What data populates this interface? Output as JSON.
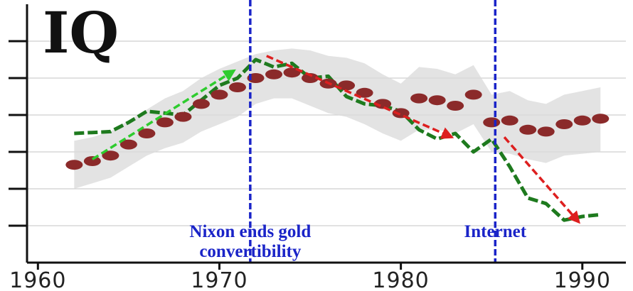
{
  "chart_data": {
    "type": "line",
    "title": "IQ",
    "xlabel": "",
    "ylabel": "",
    "xlim": [
      1959.4,
      1992.4
    ],
    "ylim": [
      0,
      7
    ],
    "x_ticks": [
      "1960",
      "1970",
      "1980",
      "1990"
    ],
    "y_gridlines": [
      1,
      2,
      3,
      4,
      5,
      6
    ],
    "grid": true,
    "legend": "none",
    "series": [
      {
        "style": "dashed",
        "color": "#1e7a1e",
        "x": [
          1962,
          1964,
          1965,
          1966,
          1968,
          1969,
          1970,
          1971,
          1972,
          1973,
          1974,
          1975,
          1976,
          1977,
          1978,
          1979,
          1980,
          1981,
          1982,
          1983,
          1984,
          1985,
          1986,
          1987,
          1988,
          1989,
          1990,
          1991
        ],
        "y": [
          3.5,
          3.55,
          3.8,
          4.1,
          4.0,
          4.4,
          4.8,
          5.0,
          5.5,
          5.3,
          5.4,
          5.0,
          5.05,
          4.5,
          4.3,
          4.25,
          4.1,
          3.6,
          3.35,
          3.5,
          3.0,
          3.35,
          2.6,
          1.75,
          1.6,
          1.15,
          1.25,
          1.3
        ]
      },
      {
        "style": "dots",
        "color": "#8b2a2a",
        "x": [
          1962,
          1963,
          1964,
          1965,
          1966,
          1967,
          1968,
          1969,
          1970,
          1971,
          1972,
          1973,
          1974,
          1975,
          1976,
          1977,
          1978,
          1979,
          1980,
          1981,
          1982,
          1983,
          1984,
          1985,
          1986,
          1987,
          1988,
          1989,
          1990,
          1991
        ],
        "y": [
          2.65,
          2.75,
          2.9,
          3.2,
          3.5,
          3.8,
          3.95,
          4.3,
          4.55,
          4.75,
          5.0,
          5.1,
          5.15,
          5.0,
          4.85,
          4.8,
          4.6,
          4.3,
          4.05,
          4.45,
          4.4,
          4.25,
          4.55,
          3.8,
          3.85,
          3.6,
          3.55,
          3.75,
          3.85,
          3.9
        ],
        "band_low": [
          2.0,
          2.15,
          2.3,
          2.6,
          2.9,
          3.1,
          3.25,
          3.55,
          3.75,
          3.95,
          4.3,
          4.45,
          4.45,
          4.25,
          4.05,
          3.95,
          3.75,
          3.5,
          3.3,
          3.6,
          3.6,
          3.5,
          3.75,
          3.0,
          2.95,
          2.8,
          2.7,
          2.9,
          2.95,
          3.0
        ],
        "band_high": [
          3.3,
          3.4,
          3.55,
          3.85,
          4.15,
          4.45,
          4.65,
          5.0,
          5.25,
          5.45,
          5.65,
          5.75,
          5.8,
          5.75,
          5.6,
          5.55,
          5.4,
          5.1,
          4.85,
          5.3,
          5.25,
          5.1,
          5.35,
          4.55,
          4.65,
          4.4,
          4.3,
          4.55,
          4.65,
          4.75
        ]
      }
    ],
    "vlines": [
      {
        "x": 1971.7,
        "label_lines": [
          "Nixon ends gold",
          "convertibility"
        ]
      },
      {
        "x": 1985.2,
        "label_lines": [
          "Internet"
        ]
      }
    ],
    "arrows": [
      {
        "color": "#2ecc2e",
        "from": [
          1963,
          2.8
        ],
        "to": [
          1970.8,
          5.2
        ]
      },
      {
        "color": "#dd1f1f",
        "from": [
          1972.6,
          5.6
        ],
        "to": [
          1982.8,
          3.4
        ]
      },
      {
        "color": "#dd1f1f",
        "from": [
          1985.7,
          3.4
        ],
        "to": [
          1989.8,
          1.1
        ]
      }
    ]
  }
}
